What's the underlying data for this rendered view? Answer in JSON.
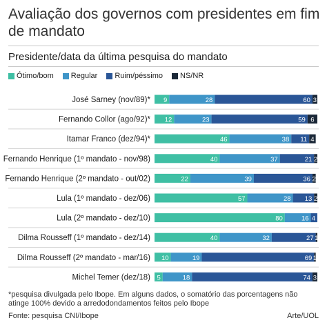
{
  "header": {
    "title": "Avaliação dos governos com presidentes em fim de mandato",
    "subtitle": "Presidente/data da última pesquisa do mandato"
  },
  "footer": {
    "footnote": "*pesquisa divulgada pelo Ibope. Em alguns dados, o somatório das porcentagens não atinge 100% devido a arredodondamentos feitos pelo Ibope",
    "source": "Fonte: pesquisa CNI/Ibope",
    "credit": "Arte/UOL"
  },
  "chart_data": {
    "type": "bar",
    "orientation": "horizontal",
    "stacked": true,
    "legend_position": "top",
    "xlim": [
      0,
      100
    ],
    "categories": [
      "José Sarney (nov/89)*",
      "Fernando Collor (ago/92)*",
      "Itamar Franco (dez/94)*",
      "Fernando Henrique (1º mandato - nov/98)",
      "Fernando Henrique (2º mandato - out/02)",
      "Lula (1º mandato - dez/06)",
      "Lula (2º mandato - dez/10)",
      "Dilma Rousseff (1º mandato - dez/14)",
      "Dilma Rousseff (2º mandato - mar/16)",
      "Michel Temer (dez/18)"
    ],
    "series": [
      {
        "name": "Ótimo/bom",
        "color": "#3fbfa4",
        "values": [
          9,
          12,
          46,
          40,
          22,
          57,
          80,
          40,
          10,
          5
        ]
      },
      {
        "name": "Regular",
        "color": "#3f95c8",
        "values": [
          28,
          23,
          38,
          37,
          39,
          28,
          16,
          32,
          19,
          18
        ]
      },
      {
        "name": "Ruim/péssimo",
        "color": "#2a5697",
        "values": [
          60,
          59,
          11,
          21,
          36,
          13,
          4,
          27,
          69,
          74
        ]
      },
      {
        "name": "NS/NR",
        "color": "#1b2838",
        "values": [
          3,
          6,
          4,
          2,
          2,
          2,
          0,
          1,
          1,
          3
        ]
      }
    ]
  }
}
